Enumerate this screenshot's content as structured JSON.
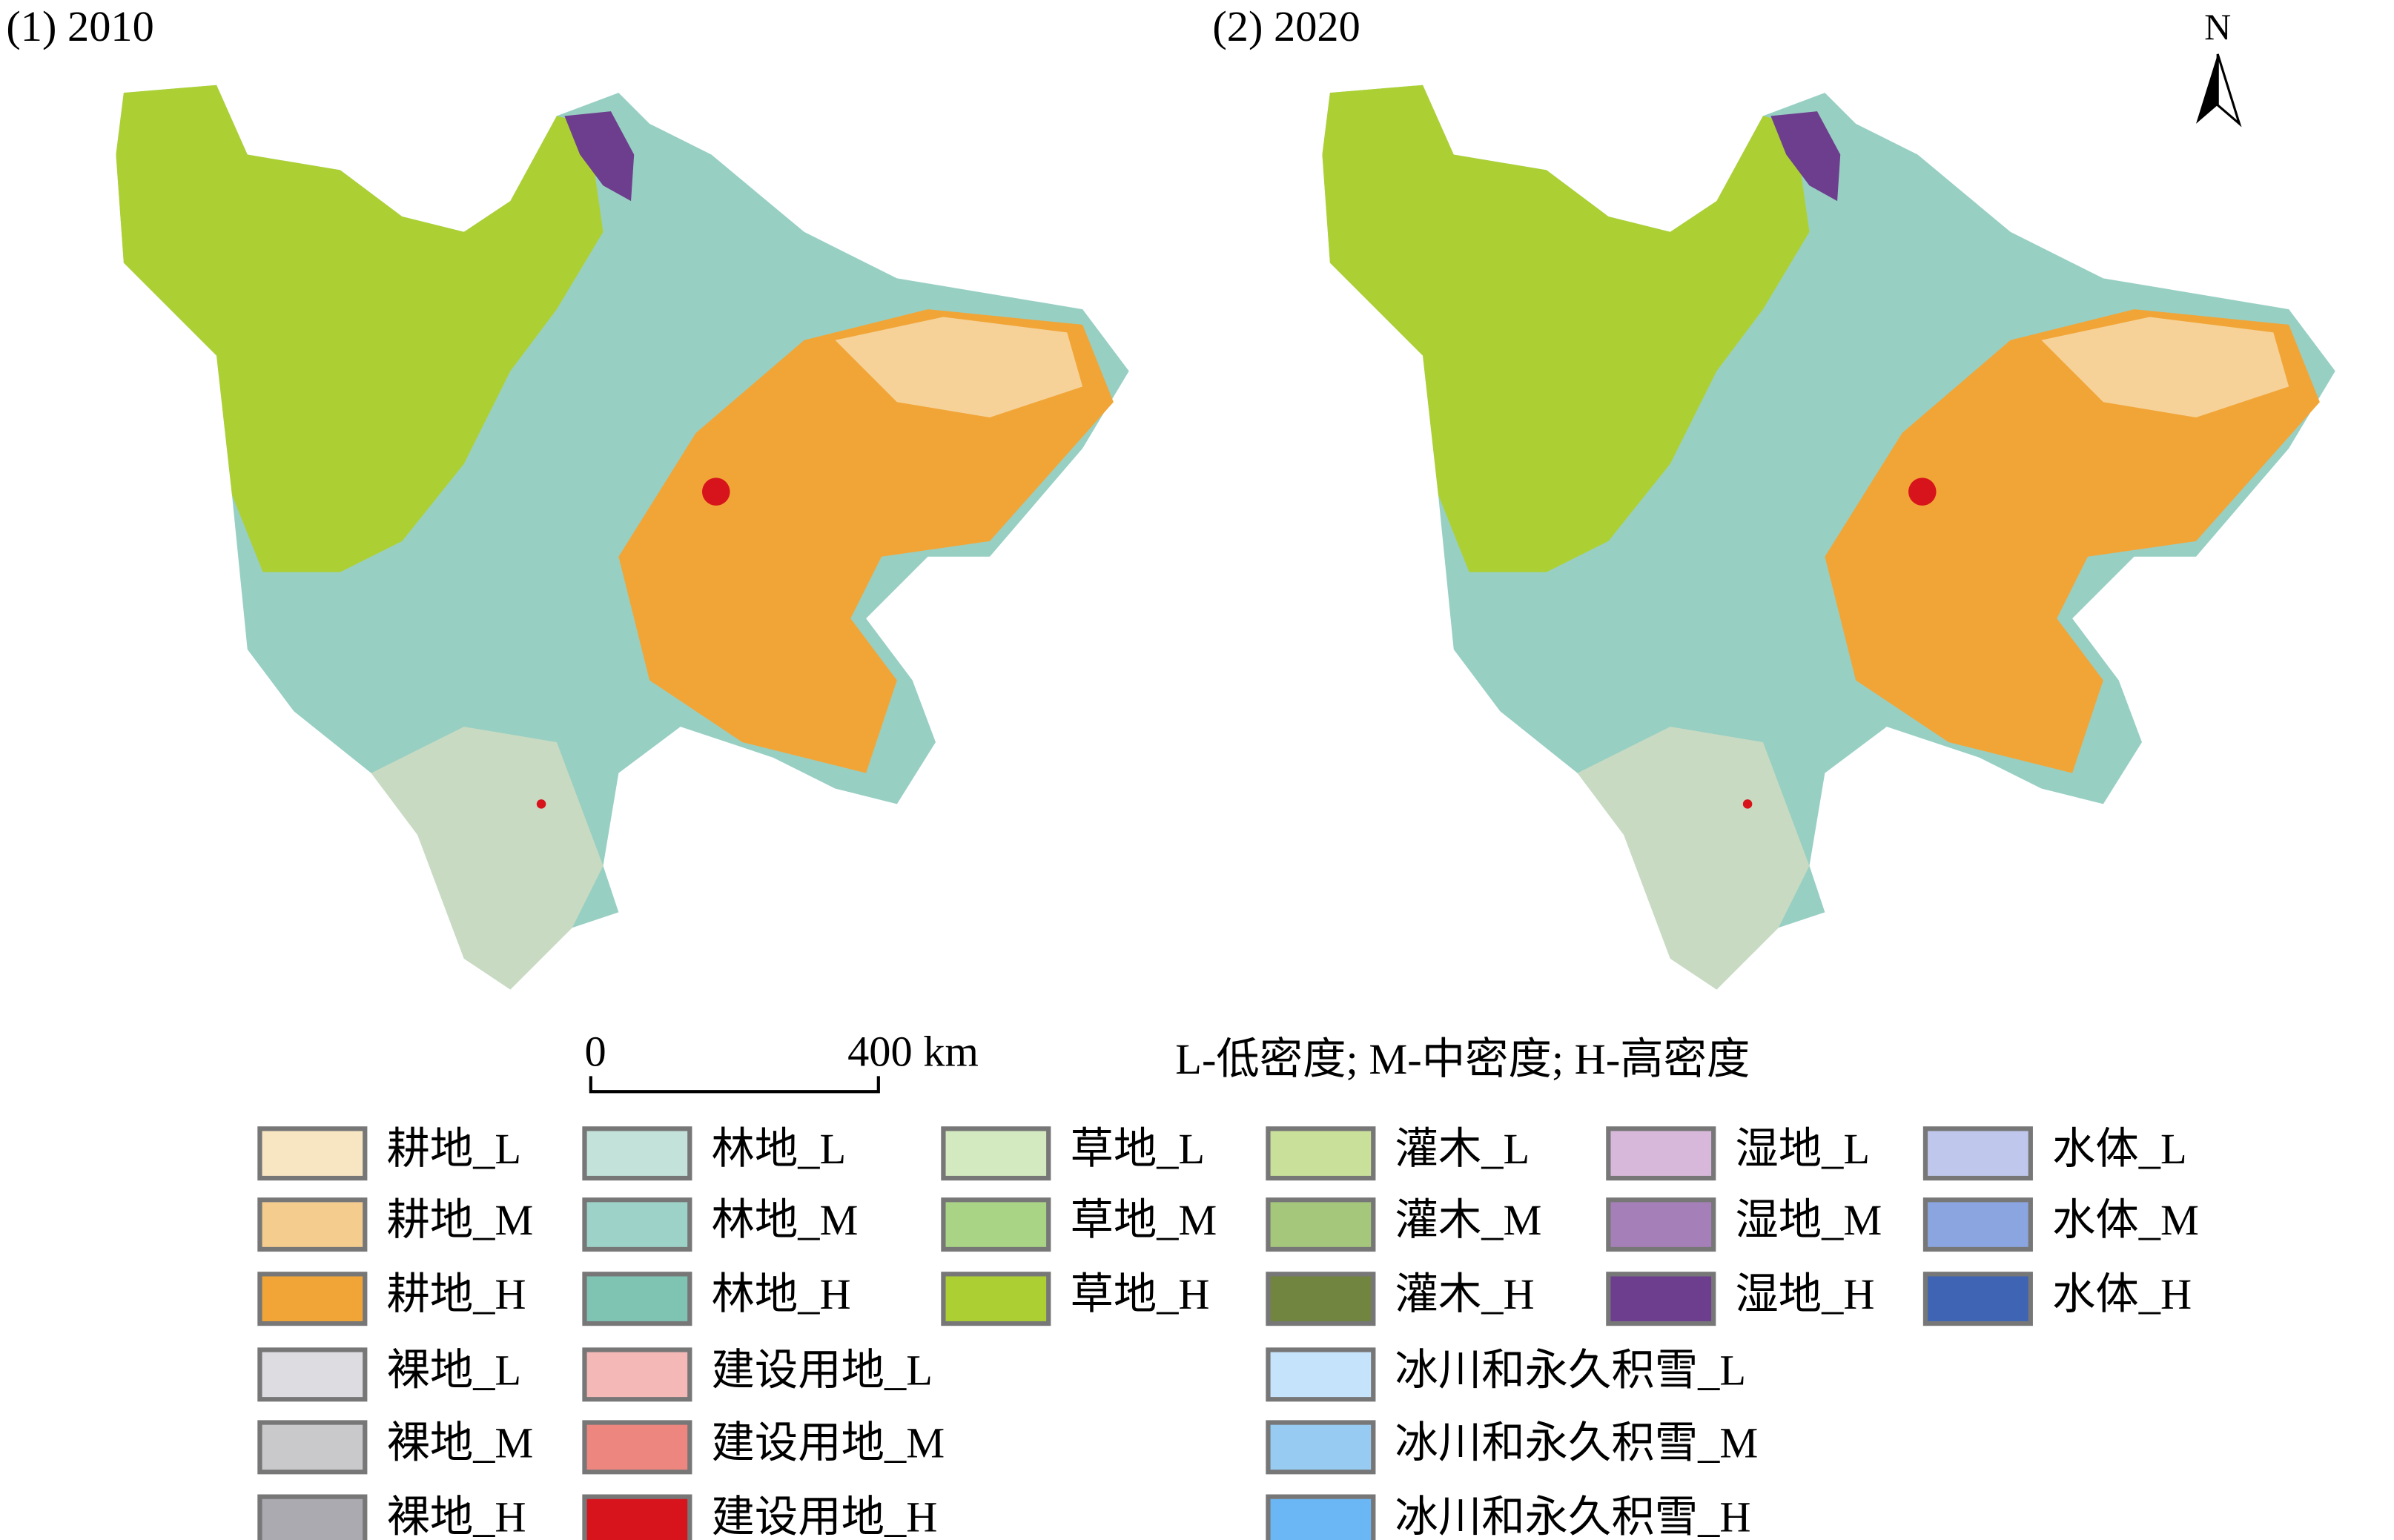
{
  "panels": [
    {
      "title": "(1) 2010"
    },
    {
      "title": "(2) 2020"
    }
  ],
  "north_arrow": {
    "label": "N"
  },
  "scale_bar": {
    "start": "0",
    "end": "400 km"
  },
  "note": "L-低密度; M-中密度; H-高密度",
  "legend": {
    "columns": [
      [
        {
          "label": "耕地_L",
          "color": "#f8e6c2"
        },
        {
          "label": "耕地_M",
          "color": "#f3cc8e"
        },
        {
          "label": "耕地_H",
          "color": "#f1a537"
        },
        {
          "label": "裸地_L",
          "color": "#dddce0"
        },
        {
          "label": "裸地_M",
          "color": "#c9c9cc"
        },
        {
          "label": "裸地_H",
          "color": "#abaab0"
        }
      ],
      [
        {
          "label": "林地_L",
          "color": "#c3e3da"
        },
        {
          "label": "林地_M",
          "color": "#9cd2c7"
        },
        {
          "label": "林地_H",
          "color": "#7fc4b3"
        },
        {
          "label": "建设用地_L",
          "color": "#f4b8b6"
        },
        {
          "label": "建设用地_M",
          "color": "#ee8680"
        },
        {
          "label": "建设用地_H",
          "color": "#d7141c"
        }
      ],
      [
        {
          "label": "草地_L",
          "color": "#d3e9bf"
        },
        {
          "label": "草地_M",
          "color": "#a9d485"
        },
        {
          "label": "草地_H",
          "color": "#acd033"
        }
      ],
      [
        {
          "label": "灌木_L",
          "color": "#c9e09a"
        },
        {
          "label": "灌木_M",
          "color": "#a4c77c"
        },
        {
          "label": "灌木_H",
          "color": "#718540"
        },
        {
          "label": "冰川和永久积雪_L",
          "color": "#c5e3fa"
        },
        {
          "label": "冰川和永久积雪_M",
          "color": "#98cbf1"
        },
        {
          "label": "冰川和永久积雪_H",
          "color": "#6bb7f6"
        }
      ],
      [
        {
          "label": "湿地_L",
          "color": "#d7b8da"
        },
        {
          "label": "湿地_M",
          "color": "#a57fb8"
        },
        {
          "label": "湿地_H",
          "color": "#6d3e8d"
        }
      ],
      [
        {
          "label": "水体_L",
          "color": "#bfc8ec"
        },
        {
          "label": "水体_M",
          "color": "#8aa5df"
        },
        {
          "label": "水体_H",
          "color": "#3e64b3"
        }
      ]
    ]
  }
}
